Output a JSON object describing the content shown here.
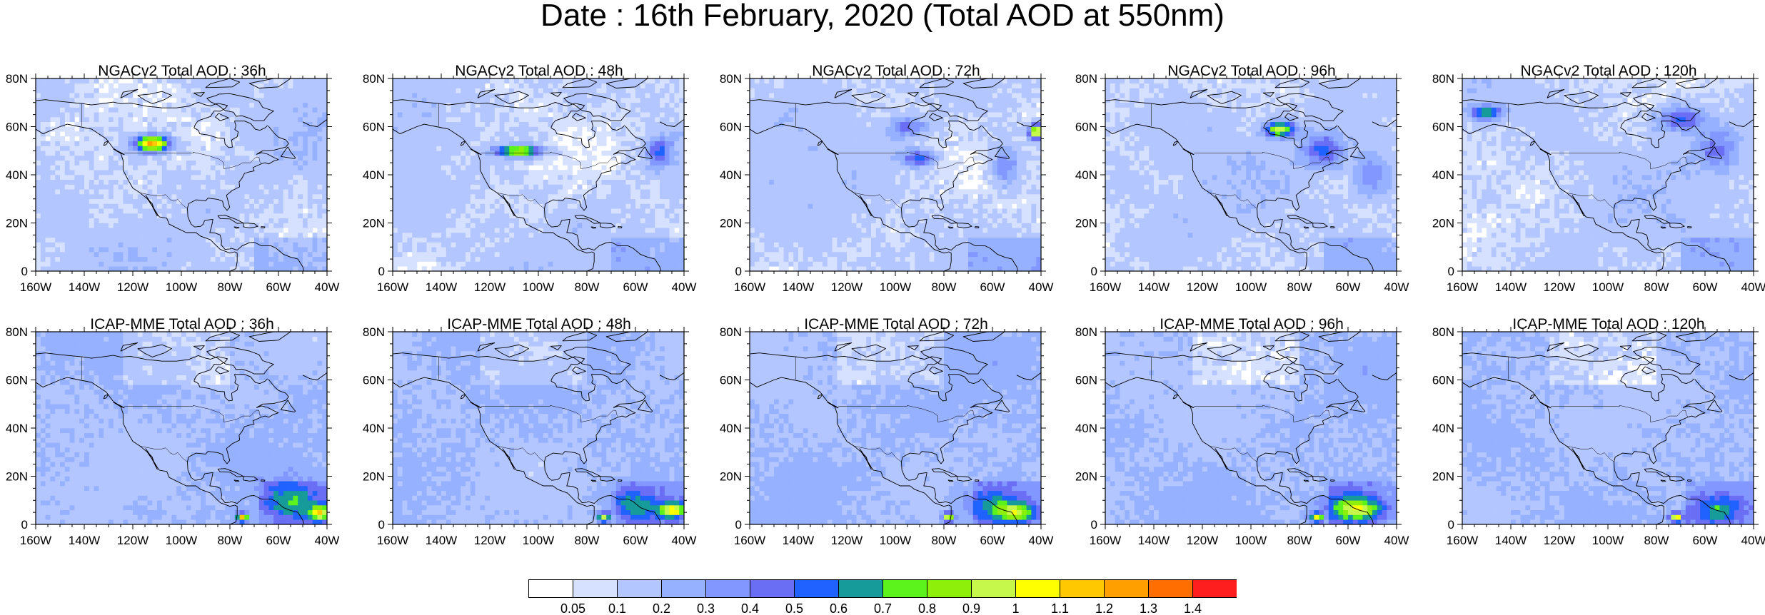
{
  "title": "Date : 16th February, 2020 (Total AOD at 550nm)",
  "lat_ticks": [
    "80N",
    "60N",
    "40N",
    "20N",
    "0"
  ],
  "lon_ticks": [
    "160W",
    "140W",
    "120W",
    "100W",
    "80W",
    "60W",
    "40W"
  ],
  "panels": [
    {
      "title": "NGACv2 Total AOD : 36h",
      "model": "NGACv2",
      "lead": "36h",
      "row": 0,
      "col": 0
    },
    {
      "title": "NGACv2 Total AOD : 48h",
      "model": "NGACv2",
      "lead": "48h",
      "row": 0,
      "col": 1
    },
    {
      "title": "NGACv2 Total AOD : 72h",
      "model": "NGACv2",
      "lead": "72h",
      "row": 0,
      "col": 2
    },
    {
      "title": "NGACv2 Total AOD : 96h",
      "model": "NGACv2",
      "lead": "96h",
      "row": 0,
      "col": 3
    },
    {
      "title": "NGACv2 Total AOD : 120h",
      "model": "NGACv2",
      "lead": "120h",
      "row": 0,
      "col": 4
    },
    {
      "title": "ICAP-MME Total AOD : 36h",
      "model": "ICAP-MME",
      "lead": "36h",
      "row": 1,
      "col": 0
    },
    {
      "title": "ICAP-MME Total AOD : 48h",
      "model": "ICAP-MME",
      "lead": "48h",
      "row": 1,
      "col": 1
    },
    {
      "title": "ICAP-MME Total AOD : 72h",
      "model": "ICAP-MME",
      "lead": "72h",
      "row": 1,
      "col": 2
    },
    {
      "title": "ICAP-MME Total AOD : 96h",
      "model": "ICAP-MME",
      "lead": "96h",
      "row": 1,
      "col": 3
    },
    {
      "title": "ICAP-MME Total AOD : 120h",
      "model": "ICAP-MME",
      "lead": "120h",
      "row": 1,
      "col": 4
    }
  ],
  "colorbar": {
    "labels": [
      "0.05",
      "0.1",
      "0.2",
      "0.3",
      "0.4",
      "0.5",
      "0.6",
      "0.7",
      "0.8",
      "0.9",
      "1",
      "1.1",
      "1.2",
      "1.3",
      "1.4"
    ],
    "colors": [
      "#ffffff",
      "#d6e0ff",
      "#b4c6ff",
      "#96b1ff",
      "#8297ff",
      "#6a6ef5",
      "#1f62ff",
      "#169a9a",
      "#5cf21c",
      "#8ef00a",
      "#c6f84c",
      "#ffff00",
      "#ffc800",
      "#ffa000",
      "#ff6e00",
      "#ff1e1e"
    ]
  }
}
